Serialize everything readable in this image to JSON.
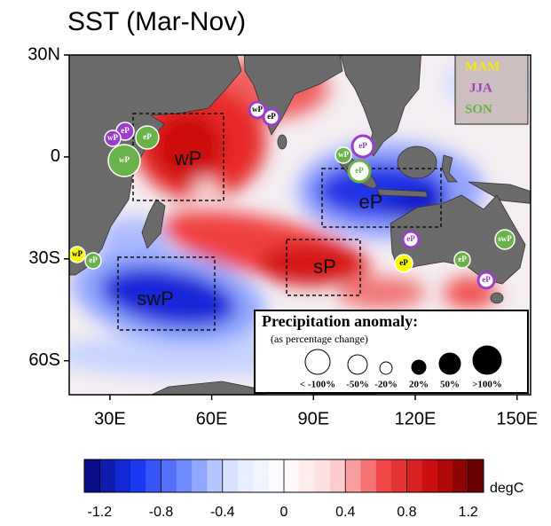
{
  "title": "SST (Mar-Nov)",
  "map": {
    "lonlim": [
      18,
      154
    ],
    "latlim": [
      -70,
      30
    ],
    "lat_ticks": [
      {
        "value": 30,
        "label": "30N"
      },
      0,
      {
        "value": -30,
        "label": "30S"
      },
      {
        "value": -60,
        "label": "60S"
      }
    ],
    "lon_ticks": [
      {
        "value": 30,
        "label": "30E"
      },
      {
        "value": 60,
        "label": "60E"
      },
      {
        "value": 90,
        "label": "90E"
      },
      {
        "value": 120,
        "label": "120E"
      },
      {
        "value": 150,
        "label": "150E"
      }
    ],
    "regions": [
      "wP",
      "eP",
      "sP",
      "swP"
    ],
    "markers": [
      "eP",
      "wP",
      "eP",
      "wP",
      "wP",
      "eP",
      "wP",
      "eP",
      "eP",
      "wP",
      "eP",
      "eP",
      "eP",
      "eP",
      "eP",
      "swP"
    ]
  },
  "season_legend": [
    "MAM",
    "JJA",
    "SON"
  ],
  "precip_legend": {
    "title": "Precipitation anomaly:",
    "subtitle": "(as percentage change)",
    "labels": [
      "< -100%",
      "-50%",
      "-20%",
      "20%",
      "50%",
      ">100%"
    ]
  },
  "colorbar": {
    "range": [
      -1.3,
      1.3
    ],
    "ticks": [
      -1.2,
      -0.8,
      -0.4,
      0,
      0.4,
      0.8,
      1.2
    ],
    "label": "degC"
  }
}
